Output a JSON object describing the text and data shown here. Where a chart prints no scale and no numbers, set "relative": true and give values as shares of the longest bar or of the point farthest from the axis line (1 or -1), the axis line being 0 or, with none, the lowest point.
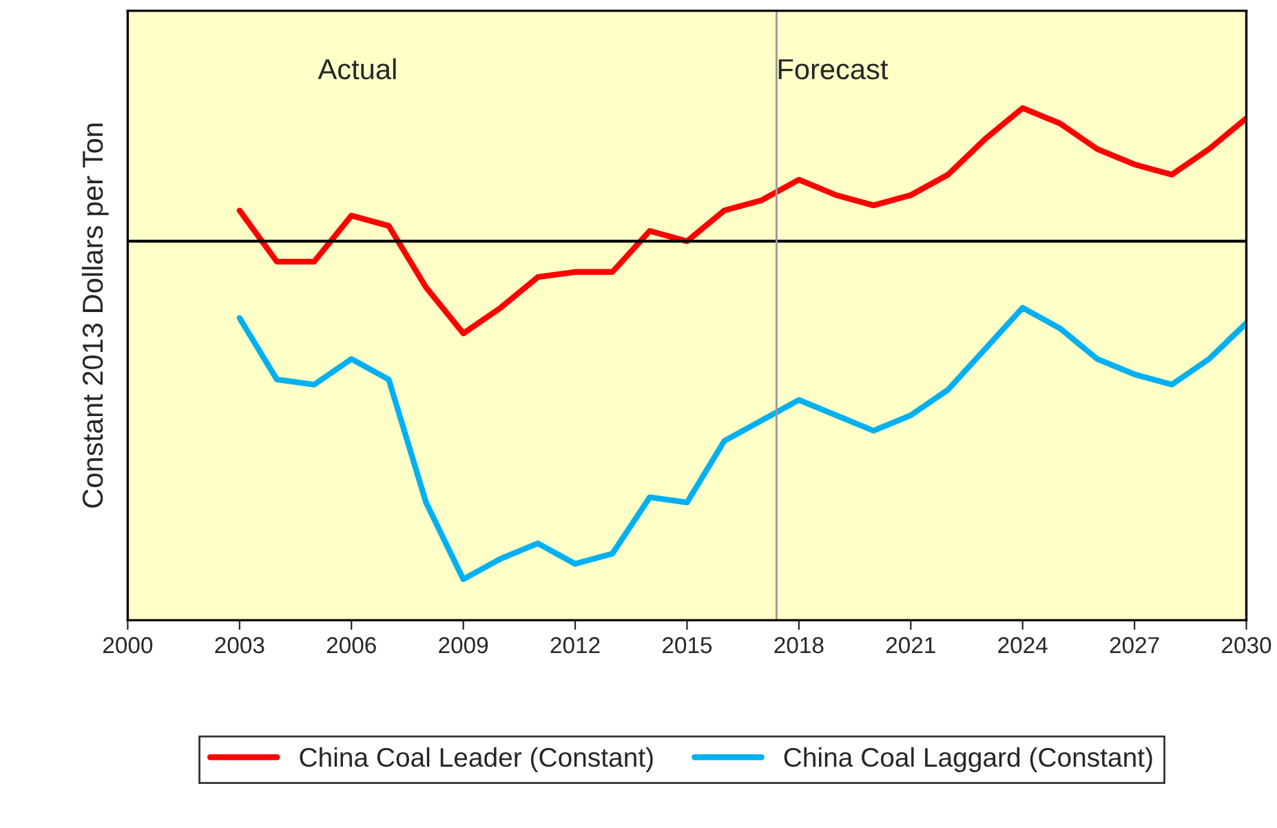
{
  "chart_data": {
    "type": "line",
    "relative": true,
    "ylabel": "Constant 2013 Dollars per Ton",
    "x": [
      2003,
      2004,
      2005,
      2006,
      2007,
      2008,
      2009,
      2010,
      2011,
      2012,
      2013,
      2014,
      2015,
      2016,
      2017,
      2018,
      2019,
      2020,
      2021,
      2022,
      2023,
      2024,
      2025,
      2026,
      2027,
      2028,
      2029,
      2030
    ],
    "xlim": [
      2000,
      2030
    ],
    "xticks": [
      2000,
      2003,
      2006,
      2009,
      2012,
      2015,
      2018,
      2021,
      2024,
      2027,
      2030
    ],
    "series": [
      {
        "name": "China Coal Leader (Constant)",
        "color": "#ff0000",
        "values": [
          0.8,
          0.7,
          0.7,
          0.79,
          0.77,
          0.65,
          0.56,
          0.61,
          0.67,
          0.68,
          0.68,
          0.76,
          0.74,
          0.8,
          0.82,
          0.86,
          0.83,
          0.81,
          0.83,
          0.87,
          0.94,
          1.0,
          0.97,
          0.92,
          0.89,
          0.87,
          0.92,
          0.98
        ]
      },
      {
        "name": "China Coal Laggard (Constant)",
        "color": "#00b0f0",
        "values": [
          0.59,
          0.47,
          0.46,
          0.51,
          0.47,
          0.23,
          0.08,
          0.12,
          0.15,
          0.11,
          0.13,
          0.24,
          0.23,
          0.35,
          0.39,
          0.43,
          0.4,
          0.37,
          0.4,
          0.45,
          0.53,
          0.61,
          0.57,
          0.51,
          0.48,
          0.46,
          0.51,
          0.58
        ]
      }
    ],
    "ref_lines": [
      {
        "axis": "y",
        "value": 0.74,
        "color": "#000000"
      },
      {
        "axis": "x",
        "value": 2017.4,
        "color": "#999999"
      }
    ],
    "annotations": [
      "Actual",
      "Forecast"
    ],
    "legend": "bottom",
    "grid": false,
    "marker": "none",
    "line_style": "solid"
  }
}
